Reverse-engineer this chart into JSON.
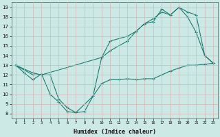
{
  "xlabel": "Humidex (Indice chaleur)",
  "bg_color": "#cce9e5",
  "line_color": "#1a7a6e",
  "grid_color": "#b0d8d2",
  "xlim": [
    -0.5,
    23.5
  ],
  "ylim": [
    7.5,
    19.5
  ],
  "xticks": [
    0,
    1,
    2,
    3,
    4,
    5,
    6,
    7,
    8,
    9,
    10,
    11,
    12,
    13,
    14,
    15,
    16,
    17,
    18,
    19,
    20,
    21,
    22,
    23
  ],
  "yticks": [
    8,
    9,
    10,
    11,
    12,
    13,
    14,
    15,
    16,
    17,
    18,
    19
  ],
  "line1_x": [
    0,
    1,
    2,
    3,
    4,
    5,
    6,
    7,
    8,
    9,
    10,
    11,
    12,
    13,
    14,
    15,
    16,
    17,
    18,
    19,
    20,
    21,
    22,
    23
  ],
  "line1_y": [
    13,
    12.2,
    11.5,
    12.1,
    10.0,
    9.2,
    8.2,
    8.1,
    8.2,
    9.8,
    11.1,
    11.5,
    11.5,
    11.6,
    11.5,
    11.6,
    11.6,
    12.0,
    12.4,
    12.7,
    13.0,
    13.0,
    13.1,
    13.2
  ],
  "line2_x": [
    0,
    2,
    3,
    4,
    5,
    6,
    7,
    9,
    10,
    11,
    13,
    14,
    15,
    16,
    17,
    18,
    19,
    20,
    21,
    22,
    23
  ],
  "line2_y": [
    13,
    12.2,
    12.0,
    12.0,
    9.5,
    8.6,
    8.1,
    9.8,
    13.8,
    15.5,
    16.0,
    16.5,
    17.3,
    17.8,
    18.5,
    18.2,
    19.0,
    18.5,
    18.2,
    14.0,
    13.2
  ],
  "line3_x": [
    0,
    2,
    3,
    10,
    11,
    13,
    14,
    15,
    16,
    17,
    18,
    19,
    20,
    21,
    22,
    23
  ],
  "line3_y": [
    13,
    12.0,
    12.0,
    13.8,
    14.5,
    15.5,
    16.5,
    17.3,
    17.5,
    18.8,
    18.2,
    19.0,
    18.0,
    16.4,
    14.0,
    13.2
  ]
}
